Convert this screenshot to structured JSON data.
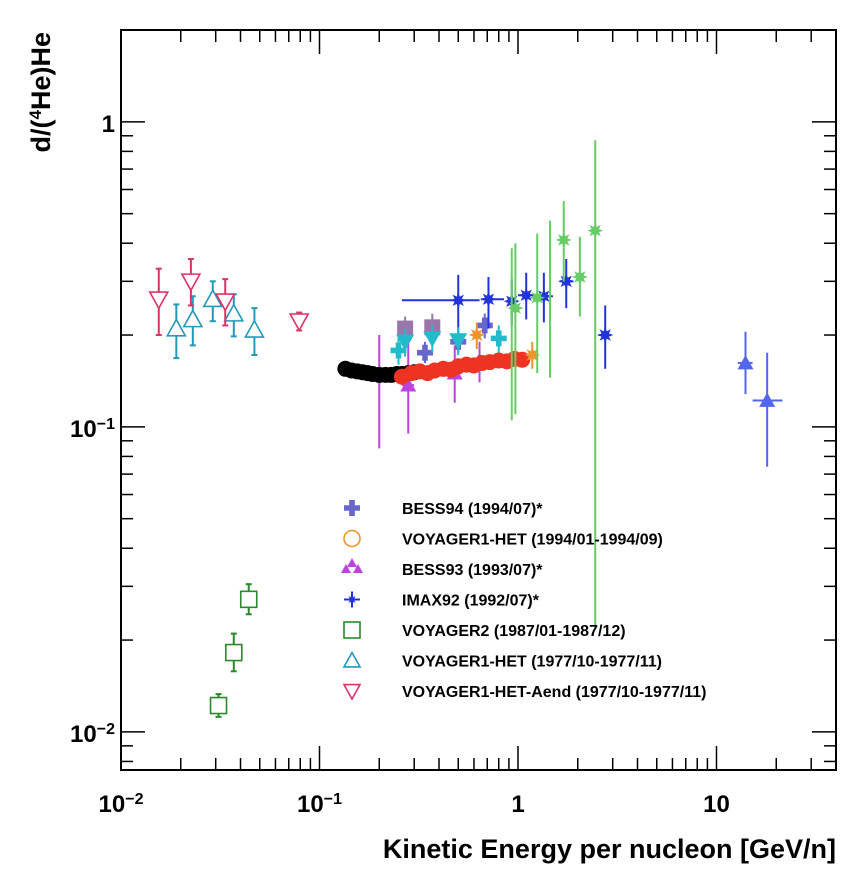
{
  "chart_data": {
    "type": "scatter",
    "title": "",
    "xlabel": "Kinetic Energy per nucleon [GeV/n]",
    "ylabel_parts": {
      "prefix": "d/(",
      "sup": "4",
      "suffix": "He)He"
    },
    "xscale": "log",
    "yscale": "log",
    "xlim": [
      0.01,
      40
    ],
    "ylim": [
      0.0075,
      2.0
    ],
    "x_ticks": [
      {
        "value": 0.01,
        "base": "10",
        "exp": "−2"
      },
      {
        "value": 0.1,
        "base": "10",
        "exp": "−1"
      },
      {
        "value": 1,
        "label": "1"
      },
      {
        "value": 10,
        "label": "10"
      }
    ],
    "y_ticks": [
      {
        "value": 0.01,
        "base": "10",
        "exp": "−2"
      },
      {
        "value": 0.1,
        "base": "10",
        "exp": "−1"
      },
      {
        "value": 1,
        "label": "1"
      }
    ],
    "legend_position": "center-bottom",
    "series": [
      {
        "name": "BESS94 (1994/07)*",
        "legend": true,
        "marker": "cross",
        "color": "#6666cc",
        "points": [
          {
            "x": 0.34,
            "y": 0.175,
            "ylo": 0.162,
            "yhi": 0.19,
            "xlo": 0.32,
            "xhi": 0.37
          },
          {
            "x": 0.5,
            "y": 0.19,
            "ylo": 0.175,
            "yhi": 0.205,
            "xlo": 0.47,
            "xhi": 0.53
          },
          {
            "x": 0.68,
            "y": 0.215,
            "ylo": 0.195,
            "yhi": 0.235,
            "xlo": 0.64,
            "xhi": 0.72
          }
        ]
      },
      {
        "name": "VOYAGER1-HET (1994/01-1994/09)",
        "legend": true,
        "marker": "open-circle",
        "color": "#f0932a",
        "points": []
      },
      {
        "name": "BESS93 (1993/07)*",
        "legend": true,
        "marker": "triangle-up",
        "color": "#bb44dd",
        "points": [
          {
            "x": 0.2,
            "y": 0.15,
            "ylo": 0.085,
            "yhi": 0.2,
            "xlo": 0.185,
            "xhi": 0.215
          },
          {
            "x": 0.28,
            "y": 0.137,
            "ylo": 0.095,
            "yhi": 0.195,
            "xlo": 0.26,
            "xhi": 0.3
          },
          {
            "x": 0.48,
            "y": 0.15,
            "ylo": 0.12,
            "yhi": 0.185,
            "xlo": 0.45,
            "xhi": 0.52
          },
          {
            "x": 0.64,
            "y": 0.165,
            "ylo": 0.14,
            "yhi": 0.19,
            "xlo": 0.6,
            "xhi": 0.68
          }
        ]
      },
      {
        "name": "IMAX92 (1992/07)*",
        "legend": true,
        "marker": "star",
        "color": "#2233dd",
        "points": [
          {
            "x": 0.5,
            "y": 0.26,
            "ylo": 0.2,
            "yhi": 0.315,
            "xlo": 0.26,
            "xhi": 0.64
          },
          {
            "x": 0.71,
            "y": 0.262,
            "ylo": 0.21,
            "yhi": 0.31,
            "xlo": 0.65,
            "xhi": 0.85
          },
          {
            "x": 0.93,
            "y": 0.258,
            "ylo": 0.215,
            "yhi": 0.305,
            "xlo": 0.87,
            "xhi": 1.0
          },
          {
            "x": 1.1,
            "y": 0.27,
            "ylo": 0.225,
            "yhi": 0.32,
            "xlo": 1.0,
            "xhi": 1.25
          },
          {
            "x": 1.35,
            "y": 0.268,
            "ylo": 0.22,
            "yhi": 0.32,
            "xlo": 1.25,
            "xhi": 1.5
          },
          {
            "x": 1.75,
            "y": 0.3,
            "ylo": 0.245,
            "yhi": 0.355,
            "xlo": 1.62,
            "xhi": 1.9
          },
          {
            "x": 2.75,
            "y": 0.2,
            "ylo": 0.155,
            "yhi": 0.25,
            "xlo": 2.55,
            "xhi": 2.95
          }
        ]
      },
      {
        "name": "VOYAGER2 (1987/01-1987/12)",
        "legend": true,
        "marker": "open-square",
        "color": "#2a8a2a",
        "points": [
          {
            "x": 0.031,
            "y": 0.0122,
            "ylo": 0.0112,
            "yhi": 0.0133
          },
          {
            "x": 0.037,
            "y": 0.0182,
            "ylo": 0.0158,
            "yhi": 0.021
          },
          {
            "x": 0.044,
            "y": 0.0272,
            "ylo": 0.0243,
            "yhi": 0.0305
          }
        ]
      },
      {
        "name": "VOYAGER1-HET (1977/10-1977/11)",
        "legend": true,
        "marker": "open-triangle-up",
        "color": "#2299bb",
        "points": [
          {
            "x": 0.019,
            "y": 0.21,
            "ylo": 0.168,
            "yhi": 0.252
          },
          {
            "x": 0.023,
            "y": 0.225,
            "ylo": 0.185,
            "yhi": 0.268
          },
          {
            "x": 0.029,
            "y": 0.262,
            "ylo": 0.222,
            "yhi": 0.3
          },
          {
            "x": 0.037,
            "y": 0.235,
            "ylo": 0.198,
            "yhi": 0.272
          },
          {
            "x": 0.047,
            "y": 0.208,
            "ylo": 0.172,
            "yhi": 0.245
          }
        ]
      },
      {
        "name": "VOYAGER1-HET-Aend (1977/10-1977/11)",
        "legend": true,
        "marker": "open-triangle-down",
        "color": "#dd3366",
        "points": [
          {
            "x": 0.0155,
            "y": 0.262,
            "ylo": 0.2,
            "yhi": 0.33
          },
          {
            "x": 0.0225,
            "y": 0.3,
            "ylo": 0.25,
            "yhi": 0.355
          },
          {
            "x": 0.0335,
            "y": 0.258,
            "ylo": 0.215,
            "yhi": 0.305
          },
          {
            "x": 0.079,
            "y": 0.222,
            "ylo": 0.207,
            "yhi": 0.237
          }
        ]
      },
      {
        "name": "black-band",
        "legend": false,
        "marker": "filled-circle",
        "color": "#000000",
        "points": [
          {
            "x": 0.135,
            "y": 0.155
          },
          {
            "x": 0.145,
            "y": 0.153
          },
          {
            "x": 0.155,
            "y": 0.152
          },
          {
            "x": 0.165,
            "y": 0.151
          },
          {
            "x": 0.175,
            "y": 0.15
          },
          {
            "x": 0.185,
            "y": 0.149
          },
          {
            "x": 0.2,
            "y": 0.148
          },
          {
            "x": 0.215,
            "y": 0.148
          },
          {
            "x": 0.23,
            "y": 0.148
          },
          {
            "x": 0.245,
            "y": 0.149
          },
          {
            "x": 0.26,
            "y": 0.149
          },
          {
            "x": 0.28,
            "y": 0.15
          },
          {
            "x": 0.3,
            "y": 0.151
          }
        ]
      },
      {
        "name": "red-band",
        "legend": false,
        "marker": "filled-circle",
        "color": "#ee3322",
        "points": [
          {
            "x": 0.26,
            "y": 0.146
          },
          {
            "x": 0.29,
            "y": 0.15
          },
          {
            "x": 0.32,
            "y": 0.152
          },
          {
            "x": 0.35,
            "y": 0.15
          },
          {
            "x": 0.38,
            "y": 0.153
          },
          {
            "x": 0.42,
            "y": 0.155
          },
          {
            "x": 0.46,
            "y": 0.154
          },
          {
            "x": 0.5,
            "y": 0.158
          },
          {
            "x": 0.55,
            "y": 0.16
          },
          {
            "x": 0.6,
            "y": 0.159
          },
          {
            "x": 0.66,
            "y": 0.162
          },
          {
            "x": 0.72,
            "y": 0.163
          },
          {
            "x": 0.8,
            "y": 0.165
          },
          {
            "x": 0.88,
            "y": 0.164
          },
          {
            "x": 0.96,
            "y": 0.167
          },
          {
            "x": 1.05,
            "y": 0.166
          }
        ]
      },
      {
        "name": "orange-stars",
        "legend": false,
        "marker": "star",
        "color": "#f0932a",
        "points": [
          {
            "x": 0.62,
            "y": 0.2,
            "ylo": 0.18,
            "yhi": 0.22
          },
          {
            "x": 1.18,
            "y": 0.172,
            "ylo": 0.155,
            "yhi": 0.19
          }
        ]
      },
      {
        "name": "purple-squares",
        "legend": false,
        "marker": "filled-square",
        "color": "#9977aa",
        "points": [
          {
            "x": 0.27,
            "y": 0.21,
            "ylo": 0.19,
            "yhi": 0.23
          },
          {
            "x": 0.37,
            "y": 0.212,
            "ylo": 0.19,
            "yhi": 0.235
          }
        ]
      },
      {
        "name": "cyan-triangles",
        "legend": false,
        "marker": "triangle-down",
        "color": "#22bbcc",
        "points": [
          {
            "x": 0.27,
            "y": 0.19,
            "ylo": 0.17,
            "yhi": 0.21
          },
          {
            "x": 0.37,
            "y": 0.195,
            "ylo": 0.175,
            "yhi": 0.215
          },
          {
            "x": 0.5,
            "y": 0.192,
            "ylo": 0.172,
            "yhi": 0.212
          }
        ]
      },
      {
        "name": "cyan-crosses",
        "legend": false,
        "marker": "cross",
        "color": "#22bbcc",
        "points": [
          {
            "x": 0.25,
            "y": 0.178,
            "ylo": 0.16,
            "yhi": 0.196
          },
          {
            "x": 0.8,
            "y": 0.195,
            "ylo": 0.175,
            "yhi": 0.215
          }
        ]
      },
      {
        "name": "green-stars",
        "legend": false,
        "marker": "star",
        "color": "#66cc66",
        "points": [
          {
            "x": 0.97,
            "y": 0.245,
            "ylo": 0.11,
            "yhi": 0.4
          },
          {
            "x": 1.25,
            "y": 0.265,
            "ylo": 0.15,
            "yhi": 0.43
          },
          {
            "x": 1.7,
            "y": 0.41,
            "ylo": 0.3,
            "yhi": 0.55
          },
          {
            "x": 2.05,
            "y": 0.31,
            "ylo": 0.23,
            "yhi": 0.42
          },
          {
            "x": 2.45,
            "y": 0.44,
            "ylo": 0.022,
            "yhi": 0.87
          }
        ]
      },
      {
        "name": "green-error-lines",
        "legend": false,
        "marker": "none",
        "color": "#66cc66",
        "points": [
          {
            "x": 0.93,
            "y": 0.24,
            "ylo": 0.105,
            "yhi": 0.385
          },
          {
            "x": 1.45,
            "y": 0.27,
            "ylo": 0.145,
            "yhi": 0.475
          }
        ]
      },
      {
        "name": "blue-triangles-high",
        "legend": false,
        "marker": "triangle-up",
        "color": "#5566ee",
        "points": [
          {
            "x": 14.0,
            "y": 0.162,
            "ylo": 0.128,
            "yhi": 0.205,
            "xlo": 12.8,
            "xhi": 15.2
          },
          {
            "x": 18.0,
            "y": 0.122,
            "ylo": 0.074,
            "yhi": 0.175,
            "xlo": 15.2,
            "xhi": 21.5
          }
        ]
      }
    ]
  }
}
